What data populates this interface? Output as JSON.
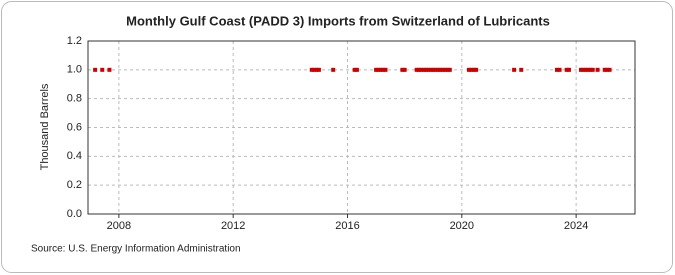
{
  "chart_data": {
    "type": "scatter",
    "title": "Monthly Gulf Coast (PADD 3) Imports from Switzerland of Lubricants",
    "y_label": "Thousand Barrels",
    "source": "Source: U.S. Energy Information Administration",
    "color": "#cc0000",
    "x": [
      2007.17,
      2007.42,
      2007.67,
      2014.75,
      2014.83,
      2014.92,
      2015.0,
      2015.5,
      2016.25,
      2016.33,
      2017.0,
      2017.08,
      2017.17,
      2017.25,
      2017.33,
      2017.92,
      2018.0,
      2018.42,
      2018.5,
      2018.58,
      2018.67,
      2018.75,
      2018.83,
      2018.92,
      2019.0,
      2019.08,
      2019.17,
      2019.25,
      2019.33,
      2019.42,
      2019.5,
      2019.58,
      2020.25,
      2020.33,
      2020.42,
      2020.5,
      2021.83,
      2022.08,
      2023.33,
      2023.42,
      2023.67,
      2023.75,
      2024.17,
      2024.25,
      2024.33,
      2024.42,
      2024.5,
      2024.58,
      2024.75,
      2025.0,
      2025.08,
      2025.17
    ],
    "values": [
      1,
      1,
      1,
      1,
      1,
      1,
      1,
      1,
      1,
      1,
      1,
      1,
      1,
      1,
      1,
      1,
      1,
      1,
      1,
      1,
      1,
      1,
      1,
      1,
      1,
      1,
      1,
      1,
      1,
      1,
      1,
      1,
      1,
      1,
      1,
      1,
      1,
      1,
      1,
      1,
      1,
      1,
      1,
      1,
      1,
      1,
      1,
      1,
      1,
      1,
      1,
      1
    ],
    "xlim": [
      2006.92,
      2026.06
    ],
    "xticks": [
      2008,
      2012,
      2016,
      2020,
      2024
    ],
    "ylim": [
      0,
      1.2
    ],
    "yticks": [
      {
        "value": 0,
        "label": "0.0"
      },
      0.2,
      0.4,
      0.6,
      0.8,
      {
        "value": 1,
        "label": "1.0"
      },
      1.2
    ],
    "grid": true
  }
}
